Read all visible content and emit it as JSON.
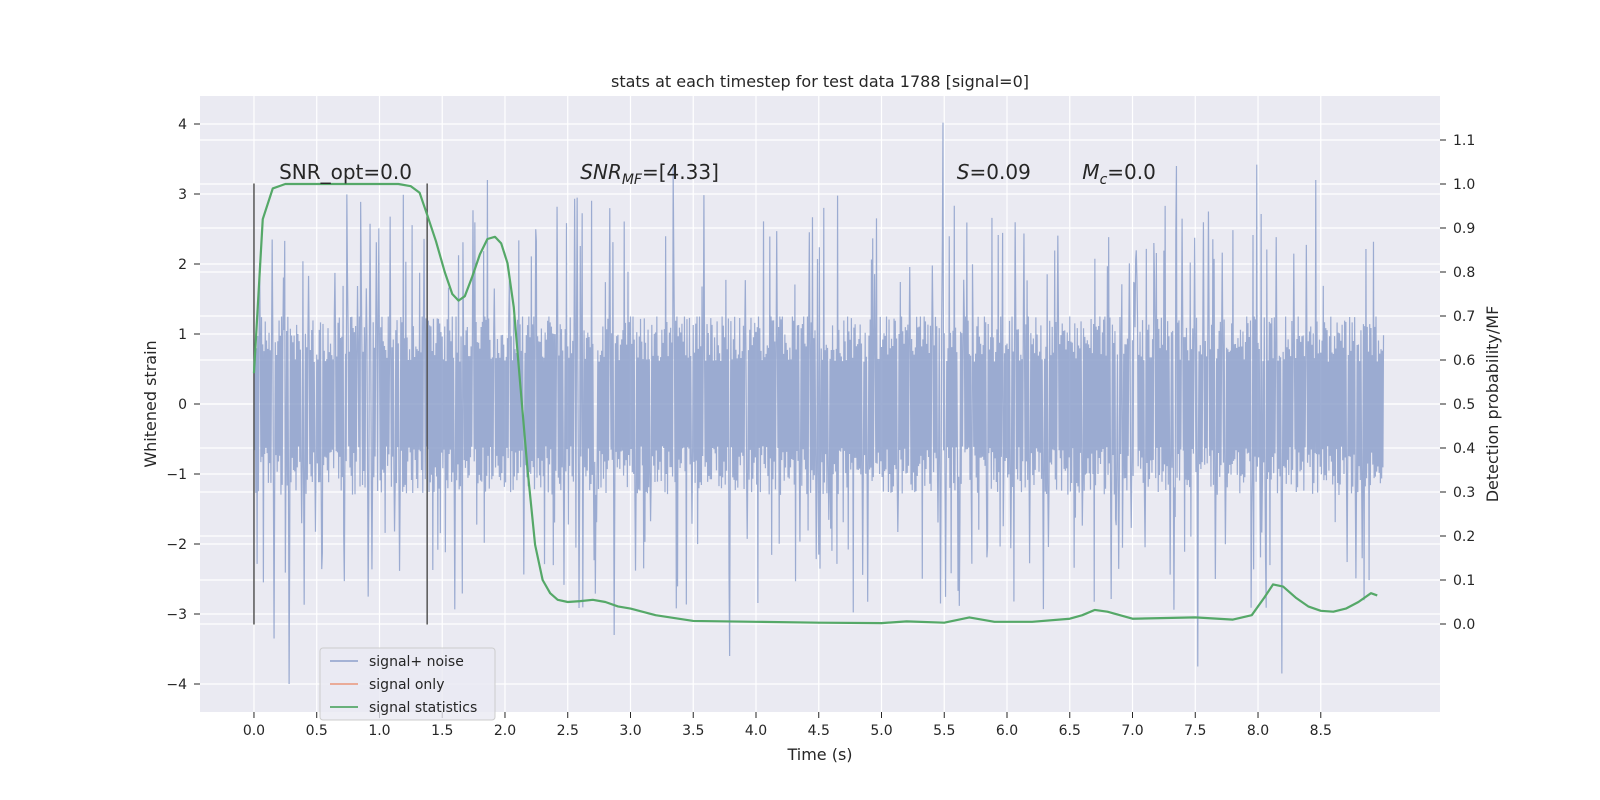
{
  "chart_data": {
    "type": "line",
    "title": "stats at each timestep for test data 1788 [signal=0]",
    "xlabel": "Time (s)",
    "ylabel_left": "Whitened strain",
    "ylabel_right": "Detection probability/MF",
    "xlim": [
      -0.43,
      9.45
    ],
    "ylim_left": [
      -4.4,
      4.4
    ],
    "ylim_right": [
      -0.2,
      1.2
    ],
    "x_ticks": [
      0.0,
      0.5,
      1.0,
      1.5,
      2.0,
      2.5,
      3.0,
      3.5,
      4.0,
      4.5,
      5.0,
      5.5,
      6.0,
      6.5,
      7.0,
      7.5,
      8.0,
      8.5
    ],
    "x_tick_labels": [
      "0.0",
      "0.5",
      "1.0",
      "1.5",
      "2.0",
      "2.5",
      "3.0",
      "3.5",
      "4.0",
      "4.5",
      "5.0",
      "5.5",
      "6.0",
      "6.5",
      "7.0",
      "7.5",
      "8.0",
      "8.5"
    ],
    "y_ticks_left": [
      4,
      3,
      2,
      1,
      0,
      -1,
      -2,
      -3,
      -4
    ],
    "y_tick_labels_left": [
      "4",
      "3",
      "2",
      "1",
      "0",
      "−1",
      "−2",
      "−3",
      "−4"
    ],
    "y_ticks_right": [
      1.1,
      1.0,
      0.9,
      0.8,
      0.7,
      0.6,
      0.5,
      0.4,
      0.3,
      0.2,
      0.1,
      0.0
    ],
    "y_tick_labels_right": [
      "1.1",
      "1.0",
      "0.9",
      "0.8",
      "0.7",
      "0.6",
      "0.5",
      "0.4",
      "0.3",
      "0.2",
      "0.1",
      "0.0"
    ],
    "vertical_markers": [
      {
        "x": 0.0,
        "y_from": -3.15,
        "y_to": 3.15
      },
      {
        "x": 1.38,
        "y_from": -3.15,
        "y_to": 3.15
      }
    ],
    "annotations": [
      {
        "x": 0.2,
        "y": 3.3,
        "text": "SNR_opt=0.0",
        "italic": false
      },
      {
        "x": 2.6,
        "y": 3.3,
        "text": "SNR_MF=[4.33]",
        "italic": true
      },
      {
        "x": 5.6,
        "y": 3.3,
        "text": "S=0.09",
        "italic": true
      },
      {
        "x": 6.6,
        "y": 3.3,
        "text": "M_c=0.0",
        "italic": true
      }
    ],
    "noise_series": {
      "name": "signal+ noise",
      "color": "#8da0cb",
      "x_start": 0.0,
      "x_end": 9.0,
      "dense_band_pos": 1.25,
      "dense_band_neg": -1.35,
      "spike_max": 4.02,
      "spike_min": -4.0
    },
    "signal_only_series": {
      "name": "signal only",
      "color": "#e9967a"
    },
    "statistics_series": {
      "name": "signal statistics",
      "color": "#55a868",
      "axis": "right",
      "x": [
        0.0,
        0.07,
        0.15,
        0.25,
        0.4,
        0.6,
        0.8,
        1.0,
        1.15,
        1.25,
        1.32,
        1.38,
        1.45,
        1.52,
        1.58,
        1.63,
        1.68,
        1.74,
        1.8,
        1.86,
        1.92,
        1.97,
        2.02,
        2.07,
        2.12,
        2.18,
        2.24,
        2.3,
        2.36,
        2.42,
        2.5,
        2.6,
        2.7,
        2.8,
        2.9,
        3.0,
        3.2,
        3.5,
        4.0,
        4.5,
        5.0,
        5.2,
        5.5,
        5.7,
        5.9,
        6.2,
        6.5,
        6.6,
        6.7,
        6.8,
        7.0,
        7.5,
        7.8,
        7.95,
        8.05,
        8.12,
        8.2,
        8.3,
        8.4,
        8.5,
        8.6,
        8.7,
        8.8,
        8.9,
        8.95
      ],
      "y": [
        0.57,
        0.92,
        0.99,
        1.0,
        1.0,
        1.0,
        1.0,
        1.0,
        1.0,
        0.995,
        0.98,
        0.93,
        0.87,
        0.8,
        0.75,
        0.735,
        0.745,
        0.79,
        0.84,
        0.875,
        0.88,
        0.865,
        0.82,
        0.72,
        0.55,
        0.35,
        0.18,
        0.1,
        0.07,
        0.055,
        0.05,
        0.052,
        0.055,
        0.05,
        0.04,
        0.035,
        0.02,
        0.007,
        0.005,
        0.003,
        0.002,
        0.006,
        0.003,
        0.015,
        0.005,
        0.005,
        0.012,
        0.02,
        0.032,
        0.028,
        0.012,
        0.015,
        0.01,
        0.02,
        0.06,
        0.09,
        0.085,
        0.06,
        0.04,
        0.03,
        0.028,
        0.035,
        0.05,
        0.07,
        0.065
      ]
    },
    "legend": {
      "placement": "lower-left",
      "entries": [
        "signal+ noise",
        "signal only",
        "signal statistics"
      ]
    },
    "grid": true,
    "colors": {
      "background": "#eaeaf2",
      "grid": "#ffffff",
      "marker": "#555555"
    }
  }
}
